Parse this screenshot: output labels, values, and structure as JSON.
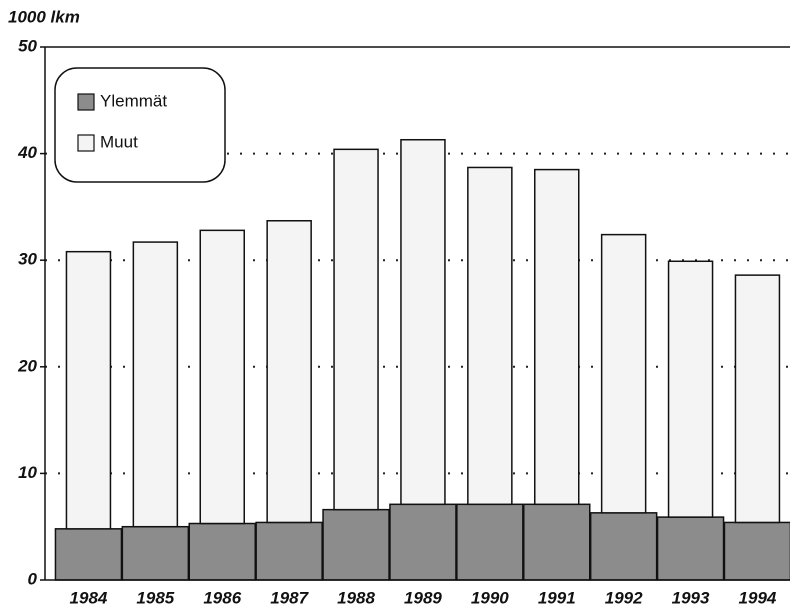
{
  "chart_data": {
    "type": "stacked_bar",
    "title": "1000 lkm",
    "categories": [
      "1984",
      "1985",
      "1986",
      "1987",
      "1988",
      "1989",
      "1990",
      "1991",
      "1992",
      "1993",
      "1994"
    ],
    "series": [
      {
        "name": "Ylemmät",
        "color": "#8c8c8c",
        "values": [
          4.8,
          5.0,
          5.3,
          5.4,
          6.6,
          7.1,
          7.1,
          7.1,
          6.3,
          5.9,
          5.4
        ]
      },
      {
        "name": "Muut",
        "color": "#f4f4f4",
        "values": [
          26.0,
          26.7,
          27.5,
          28.3,
          33.8,
          34.2,
          31.6,
          31.4,
          26.1,
          24.0,
          23.2
        ]
      }
    ],
    "ylim": [
      0,
      50
    ],
    "yticks": [
      0,
      10,
      20,
      30,
      40,
      50
    ],
    "grid": true,
    "legend": "top-left"
  }
}
